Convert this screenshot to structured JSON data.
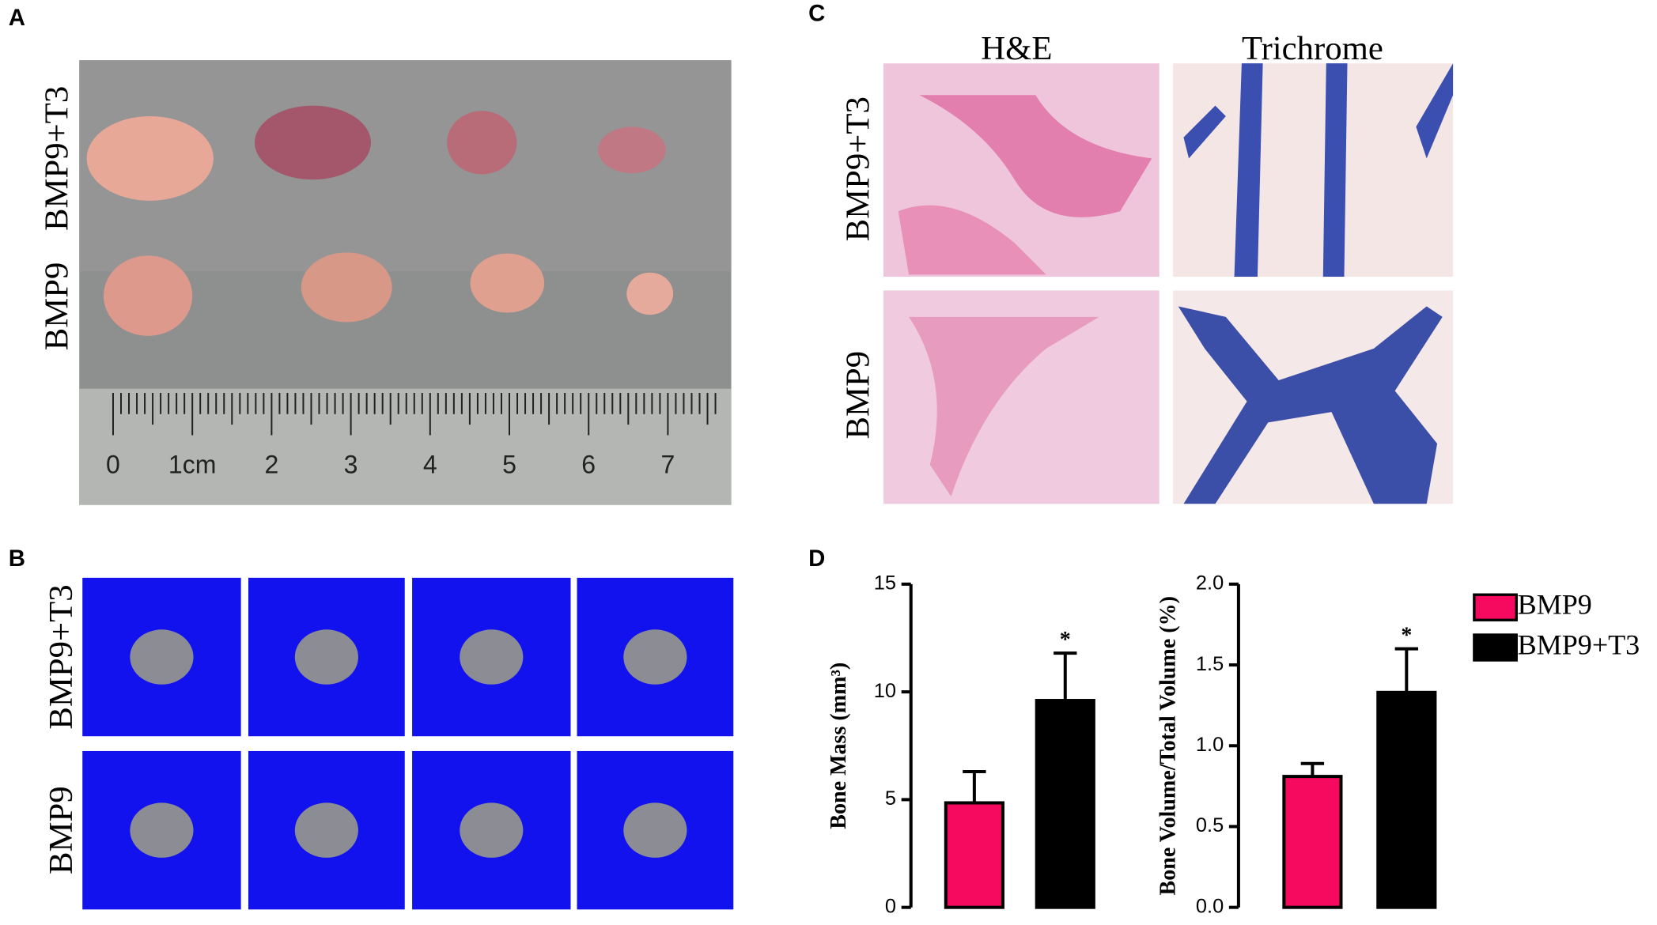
{
  "panels": {
    "A": {
      "label": "A",
      "row_labels": [
        "BMP9+T3",
        "BMP9"
      ],
      "ruler_labels": [
        "0",
        "1cm",
        "2",
        "3",
        "4",
        "5",
        "6",
        "7"
      ]
    },
    "B": {
      "label": "B",
      "row_labels": [
        "BMP9+T3",
        "BMP9"
      ]
    },
    "C": {
      "label": "C",
      "row_labels": [
        "BMP9+T3",
        "BMP9"
      ],
      "column_labels": [
        "H&E",
        "Trichrome"
      ]
    },
    "D": {
      "label": "D"
    }
  },
  "legend": [
    {
      "name": "BMP9",
      "color": "#f50a5f"
    },
    {
      "name": "BMP9+T3",
      "color": "#000000"
    }
  ],
  "chart_data": [
    {
      "type": "bar",
      "y_label": "Bone Mass (mm³)",
      "categories": [
        null,
        null
      ],
      "values": [
        4.85,
        9.6
      ],
      "errors": [
        1.45,
        2.2
      ],
      "colors": [
        "#f50a5f",
        "#000000"
      ],
      "annotation": "*",
      "ylim": [
        0,
        15
      ],
      "yticks": [
        0,
        5,
        10,
        15
      ]
    },
    {
      "type": "bar",
      "y_label": "Bone Volume/Total Volume (%)",
      "categories": [
        null,
        null
      ],
      "values": [
        0.81,
        1.33
      ],
      "errors": [
        0.08,
        0.27
      ],
      "colors": [
        "#f50a5f",
        "#000000"
      ],
      "annotation": "*",
      "ylim": [
        0,
        2
      ],
      "yticks": [
        {
          "value": 0,
          "label": "0.0"
        },
        0.5,
        {
          "value": 1,
          "label": "1.0"
        },
        1.5,
        {
          "value": 2,
          "label": "2.0"
        }
      ]
    }
  ]
}
